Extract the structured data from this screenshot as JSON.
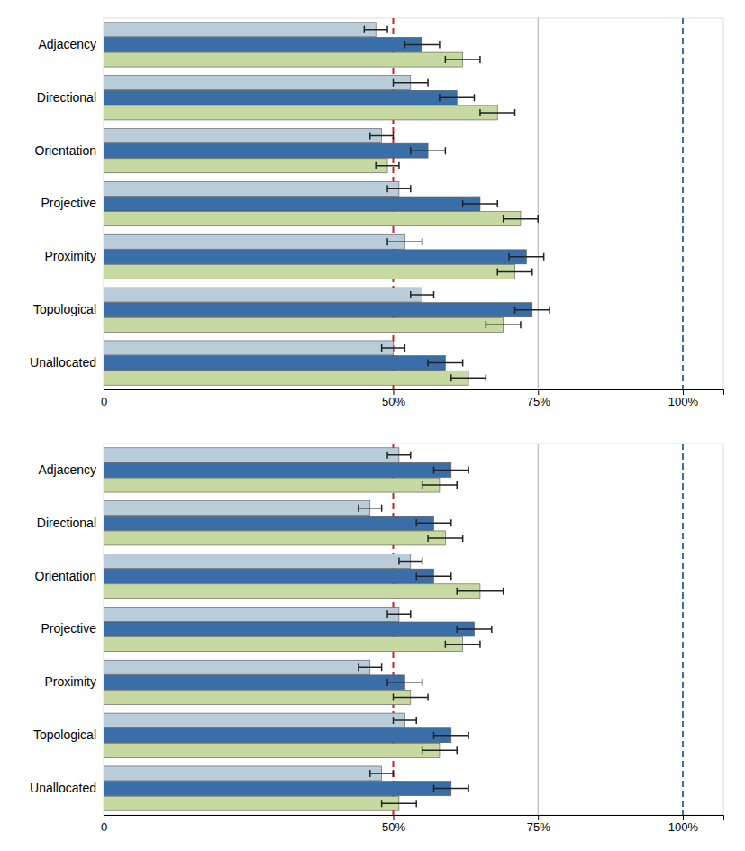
{
  "chart_data": [
    {
      "type": "bar",
      "orientation": "horizontal",
      "grid": false,
      "categories": [
        "Adjacency",
        "Directional",
        "Orientation",
        "Projective",
        "Proximity",
        "Topological",
        "Unallocated"
      ],
      "series": [
        {
          "color": "#b8cdd9",
          "values": [
            47,
            53,
            48,
            51,
            52,
            55,
            50
          ],
          "errors": [
            2,
            3,
            2,
            2,
            3,
            2,
            2
          ]
        },
        {
          "color": "#3a6ea8",
          "values": [
            55,
            61,
            56,
            65,
            73,
            74,
            59
          ],
          "errors": [
            3,
            3,
            3,
            3,
            3,
            3,
            3
          ]
        },
        {
          "color": "#c6d9a0",
          "values": [
            62,
            68,
            49,
            72,
            71,
            69,
            63
          ],
          "errors": [
            3,
            3,
            2,
            3,
            3,
            3,
            3
          ]
        }
      ],
      "xlim": [
        0,
        107
      ],
      "xticks": [
        0,
        {
          "value": 50,
          "label": "50%"
        },
        {
          "value": 75,
          "label": "75%"
        },
        {
          "value": 100,
          "label": "100%"
        }
      ],
      "ref_lines": [
        {
          "value": 75,
          "color": "#aaaaaa",
          "line_style": "solid"
        },
        {
          "value": 50,
          "color": "#cc2222",
          "line_style": "dashed"
        },
        {
          "value": 100,
          "color": "#3a6ea8",
          "line_style": "dashed"
        }
      ]
    },
    {
      "type": "bar",
      "orientation": "horizontal",
      "grid": false,
      "categories": [
        "Adjacency",
        "Directional",
        "Orientation",
        "Projective",
        "Proximity",
        "Topological",
        "Unallocated"
      ],
      "series": [
        {
          "color": "#b8cdd9",
          "values": [
            51,
            46,
            53,
            51,
            46,
            52,
            48
          ],
          "errors": [
            2,
            2,
            2,
            2,
            2,
            2,
            2
          ]
        },
        {
          "color": "#3a6ea8",
          "values": [
            60,
            57,
            57,
            64,
            52,
            60,
            60
          ],
          "errors": [
            3,
            3,
            3,
            3,
            3,
            3,
            3
          ]
        },
        {
          "color": "#c6d9a0",
          "values": [
            58,
            59,
            65,
            62,
            53,
            58,
            51
          ],
          "errors": [
            3,
            3,
            4,
            3,
            3,
            3,
            3
          ]
        }
      ],
      "xlim": [
        0,
        107
      ],
      "xticks": [
        0,
        {
          "value": 50,
          "label": "50%"
        },
        {
          "value": 75,
          "label": "75%"
        },
        {
          "value": 100,
          "label": "100%"
        }
      ],
      "ref_lines": [
        {
          "value": 75,
          "color": "#aaaaaa",
          "line_style": "solid"
        },
        {
          "value": 50,
          "color": "#cc2222",
          "line_style": "dashed"
        },
        {
          "value": 100,
          "color": "#3a6ea8",
          "line_style": "dashed"
        }
      ]
    }
  ]
}
